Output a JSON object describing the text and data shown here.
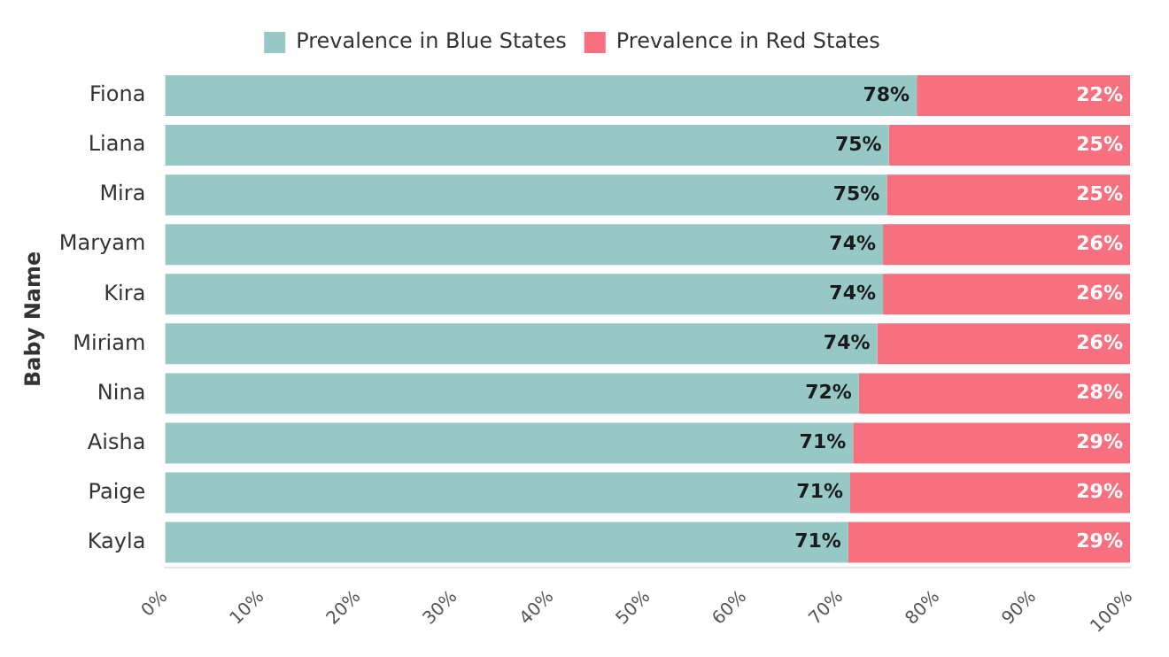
{
  "chart_data": {
    "type": "bar",
    "orientation": "horizontal",
    "stacked": true,
    "ylabel": "Baby Name",
    "categories": [
      "Fiona",
      "Liana",
      "Mira",
      "Maryam",
      "Kira",
      "Miriam",
      "Nina",
      "Aisha",
      "Paige",
      "Kayla"
    ],
    "series": [
      {
        "name": "Prevalence in Blue States",
        "color": "#96c8c6",
        "values": [
          77.9,
          75.0,
          74.8,
          74.4,
          74.4,
          73.8,
          71.9,
          71.3,
          71.0,
          70.8
        ],
        "value_labels": [
          "78%",
          "75%",
          "75%",
          "74%",
          "74%",
          "74%",
          "72%",
          "71%",
          "71%",
          "71%"
        ]
      },
      {
        "name": "Prevalence in Red States",
        "color": "#f7707f",
        "values": [
          22.1,
          25.0,
          25.2,
          25.6,
          25.6,
          26.2,
          28.1,
          28.7,
          29.0,
          29.2
        ],
        "value_labels": [
          "22%",
          "25%",
          "25%",
          "26%",
          "26%",
          "26%",
          "28%",
          "29%",
          "29%",
          "29%"
        ]
      }
    ],
    "xlim": [
      0,
      100
    ],
    "xticks": [
      {
        "value": 0,
        "label": "0%"
      },
      {
        "value": 10,
        "label": "10%"
      },
      {
        "value": 20,
        "label": "20%"
      },
      {
        "value": 30,
        "label": "30%"
      },
      {
        "value": 40,
        "label": "40%"
      },
      {
        "value": 50,
        "label": "50%"
      },
      {
        "value": 60,
        "label": "60%"
      },
      {
        "value": 70,
        "label": "70%"
      },
      {
        "value": 80,
        "label": "80%"
      },
      {
        "value": 90,
        "label": "90%"
      },
      {
        "value": 100,
        "label": "100%"
      }
    ],
    "grid": false,
    "legend": "top"
  }
}
